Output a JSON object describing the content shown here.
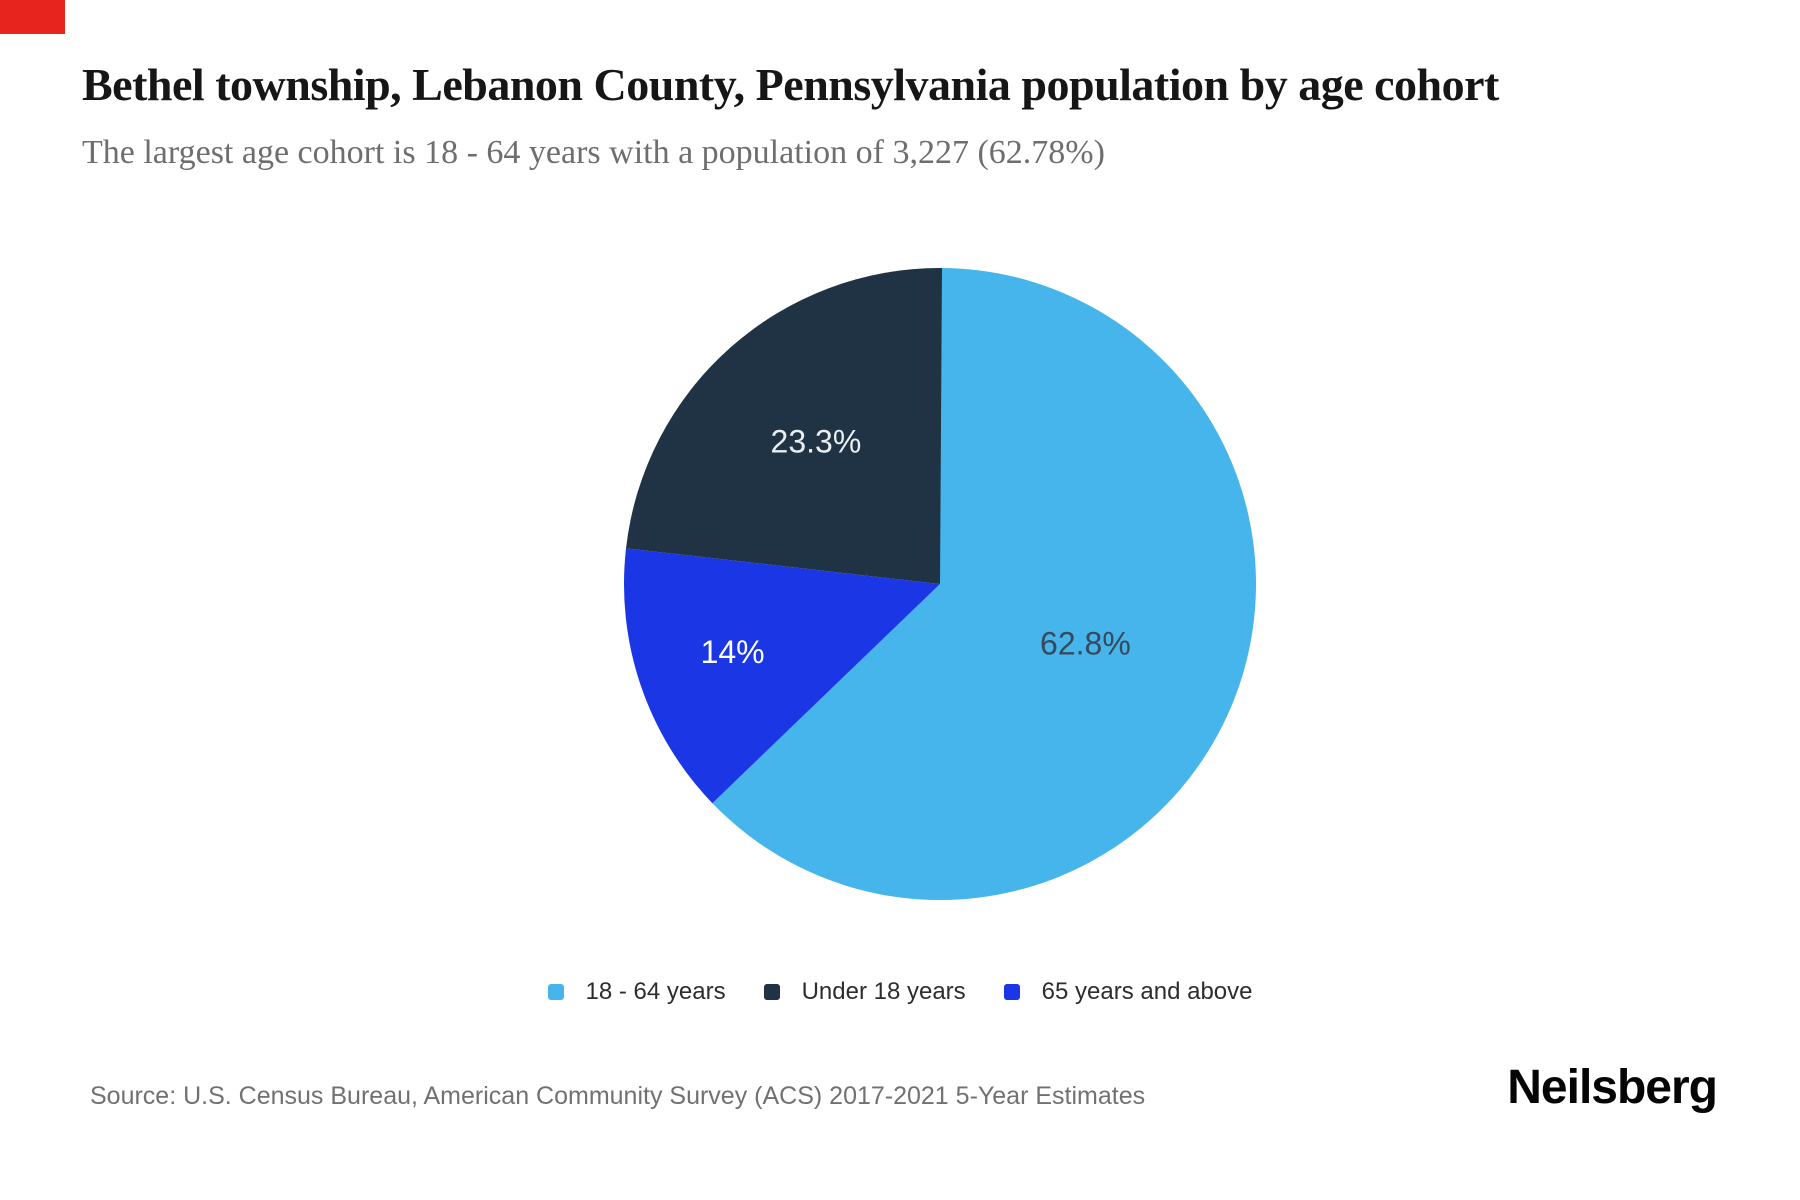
{
  "header": {
    "title": "Bethel township, Lebanon County, Pennsylvania population by age cohort",
    "subtitle": "The largest age cohort is 18 - 64 years with a population of 3,227 (62.78%)"
  },
  "chart_data": {
    "type": "pie",
    "title": "Bethel township, Lebanon County, Pennsylvania population by age cohort",
    "subtitle": "The largest age cohort is 18 - 64 years with a population of 3,227 (62.78%)",
    "slices": [
      {
        "label": "18 - 64 years",
        "pct": 62.8,
        "display": "62.8%",
        "color": "#46b5ec",
        "label_color": "#37495c"
      },
      {
        "label": "Under 18 years",
        "pct": 23.3,
        "display": "23.3%",
        "color": "#1f3344",
        "label_color": "#e9eef3"
      },
      {
        "label": "65 years and above",
        "pct": 14,
        "display": "14%",
        "color": "#1b36e4",
        "label_color": "#fdfdfd"
      }
    ],
    "draw_sequence": [
      0,
      2,
      1
    ],
    "start_angle_deg": 0,
    "direction": "clockwise",
    "legend_position": "bottom",
    "largest_cohort": {
      "label": "18 - 64 years",
      "population": "3,227",
      "share": "62.78%"
    }
  },
  "footer": {
    "source": "Source: U.S. Census Bureau, American Community Survey (ACS) 2017-2021 5-Year Estimates",
    "brand": "Neilsberg"
  },
  "colors": {
    "corner_marker": "#e8241f",
    "background": "#ffffff",
    "title_text": "#161616",
    "subtitle_text": "#6e6e6e",
    "legend_text": "#2d2d2d",
    "source_text": "#717171"
  }
}
